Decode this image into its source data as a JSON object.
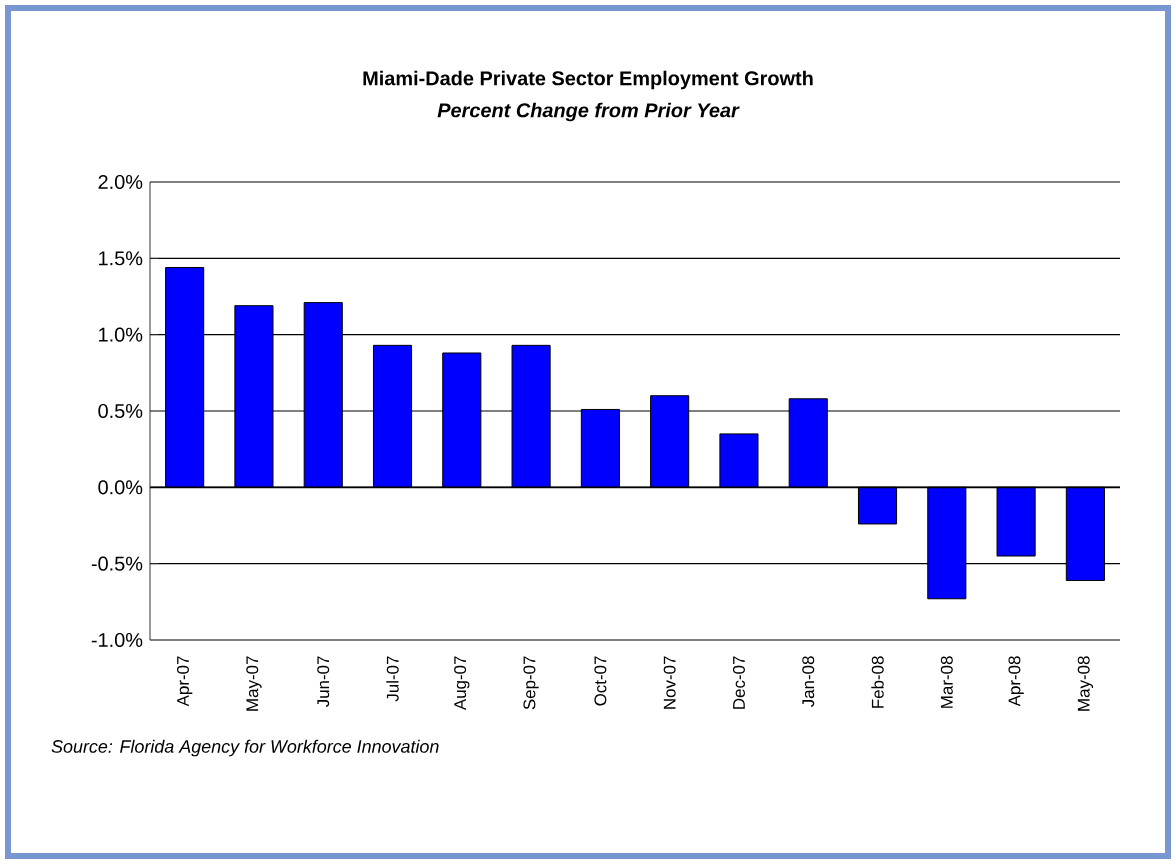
{
  "chart_data": {
    "type": "bar",
    "title": "Miami-Dade Private Sector Employment Growth",
    "subtitle": "Percent Change from Prior Year",
    "categories": [
      "Apr-07",
      "May-07",
      "Jun-07",
      "Jul-07",
      "Aug-07",
      "Sep-07",
      "Oct-07",
      "Nov-07",
      "Dec-07",
      "Jan-08",
      "Feb-08",
      "Mar-08",
      "Apr-08",
      "May-08"
    ],
    "values": [
      1.44,
      1.19,
      1.21,
      0.93,
      0.88,
      0.93,
      0.51,
      0.6,
      0.35,
      0.58,
      -0.24,
      -0.73,
      -0.45,
      -0.61
    ],
    "color": "#0000ff",
    "ylim": [
      -1.0,
      2.0
    ],
    "yticks": [
      {
        "value": -1.0,
        "label": "-1.0%"
      },
      {
        "value": -0.5,
        "label": "-0.5%"
      },
      {
        "value": 0.0,
        "label": "0.0%"
      },
      {
        "value": 0.5,
        "label": "0.5%"
      },
      {
        "value": 1.0,
        "label": "1.0%"
      },
      {
        "value": 1.5,
        "label": "1.5%"
      },
      {
        "value": 2.0,
        "label": "2.0%"
      }
    ],
    "grid": "y",
    "annotations": [
      "Source: Florida Agency for Workforce Innovation"
    ]
  }
}
